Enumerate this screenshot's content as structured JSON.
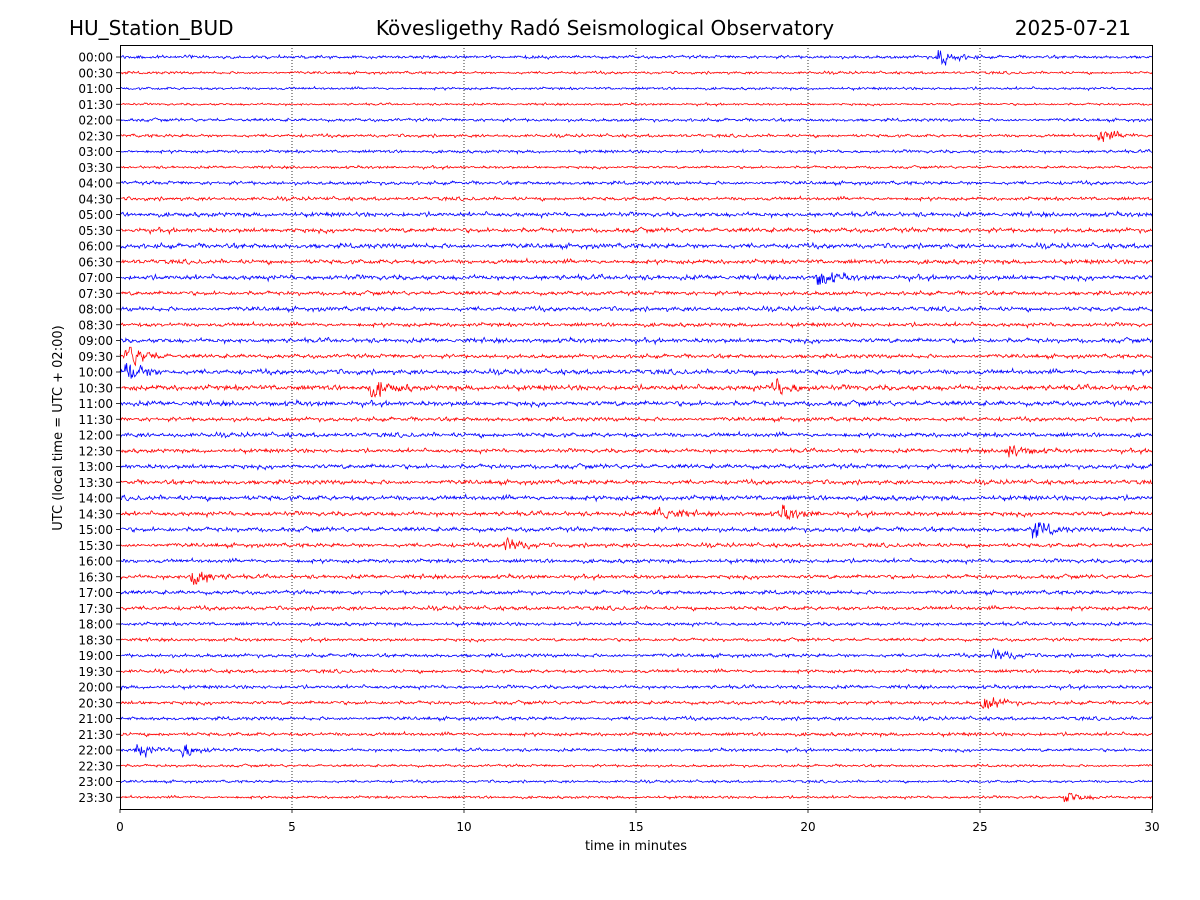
{
  "header": {
    "station": "HU_Station_BUD",
    "title": "Köveslig​ethy Radó Seismological Observatory",
    "date": "2025-07-21"
  },
  "chart_data": {
    "type": "line",
    "title": "Kövesligethy Radó Seismological Observatory",
    "xlabel": "time in minutes",
    "ylabel": "UTC (local time = UTC + 02:00)",
    "xlim": [
      0,
      30
    ],
    "xticks": [
      "0",
      "5",
      "10",
      "15",
      "20",
      "25",
      "30"
    ],
    "grid": "vertical dotted lines at 5-minute ticks",
    "colors": [
      "#0000ff",
      "#ff0000"
    ],
    "rows": [
      "00:00",
      "00:30",
      "01:00",
      "01:30",
      "02:00",
      "02:30",
      "03:00",
      "03:30",
      "04:00",
      "04:30",
      "05:00",
      "05:30",
      "06:00",
      "06:30",
      "07:00",
      "07:30",
      "08:00",
      "08:30",
      "09:00",
      "09:30",
      "10:00",
      "10:30",
      "11:00",
      "11:30",
      "12:00",
      "12:30",
      "13:00",
      "13:30",
      "14:00",
      "14:30",
      "15:00",
      "15:30",
      "16:00",
      "16:30",
      "17:00",
      "17:30",
      "18:00",
      "18:30",
      "19:00",
      "19:30",
      "20:00",
      "20:30",
      "21:00",
      "21:30",
      "22:00",
      "22:30",
      "23:00",
      "23:30"
    ],
    "noise_level": [
      0.35,
      0.3,
      0.3,
      0.25,
      0.35,
      0.35,
      0.35,
      0.3,
      0.4,
      0.4,
      0.5,
      0.5,
      0.55,
      0.5,
      0.55,
      0.45,
      0.5,
      0.45,
      0.5,
      0.45,
      0.55,
      0.6,
      0.55,
      0.45,
      0.5,
      0.45,
      0.5,
      0.5,
      0.55,
      0.5,
      0.5,
      0.45,
      0.45,
      0.45,
      0.45,
      0.45,
      0.4,
      0.35,
      0.4,
      0.4,
      0.4,
      0.4,
      0.4,
      0.4,
      0.35,
      0.3,
      0.3,
      0.3
    ],
    "events": [
      {
        "row": "00:00",
        "minute": 23.8,
        "amp": 1.2
      },
      {
        "row": "09:30",
        "minute": 0.2,
        "amp": 2.2
      },
      {
        "row": "10:00",
        "minute": 0.2,
        "amp": 1.8
      },
      {
        "row": "10:30",
        "minute": 7.3,
        "amp": 1.6
      },
      {
        "row": "10:30",
        "minute": 19.0,
        "amp": 1.2
      },
      {
        "row": "07:00",
        "minute": 20.3,
        "amp": 1.2
      },
      {
        "row": "14:30",
        "minute": 15.6,
        "amp": 1.4
      },
      {
        "row": "14:30",
        "minute": 19.2,
        "amp": 1.2
      },
      {
        "row": "15:00",
        "minute": 26.5,
        "amp": 1.4
      },
      {
        "row": "15:30",
        "minute": 11.2,
        "amp": 1.2
      },
      {
        "row": "16:30",
        "minute": 2.1,
        "amp": 1.5
      },
      {
        "row": "02:30",
        "minute": 28.5,
        "amp": 1.0
      },
      {
        "row": "20:30",
        "minute": 25.1,
        "amp": 1.1
      },
      {
        "row": "22:00",
        "minute": 0.5,
        "amp": 1.0
      },
      {
        "row": "22:00",
        "minute": 1.8,
        "amp": 1.1
      },
      {
        "row": "19:00",
        "minute": 25.4,
        "amp": 1.0
      },
      {
        "row": "12:30",
        "minute": 25.8,
        "amp": 1.1
      },
      {
        "row": "23:30",
        "minute": 27.5,
        "amp": 0.8
      }
    ]
  }
}
